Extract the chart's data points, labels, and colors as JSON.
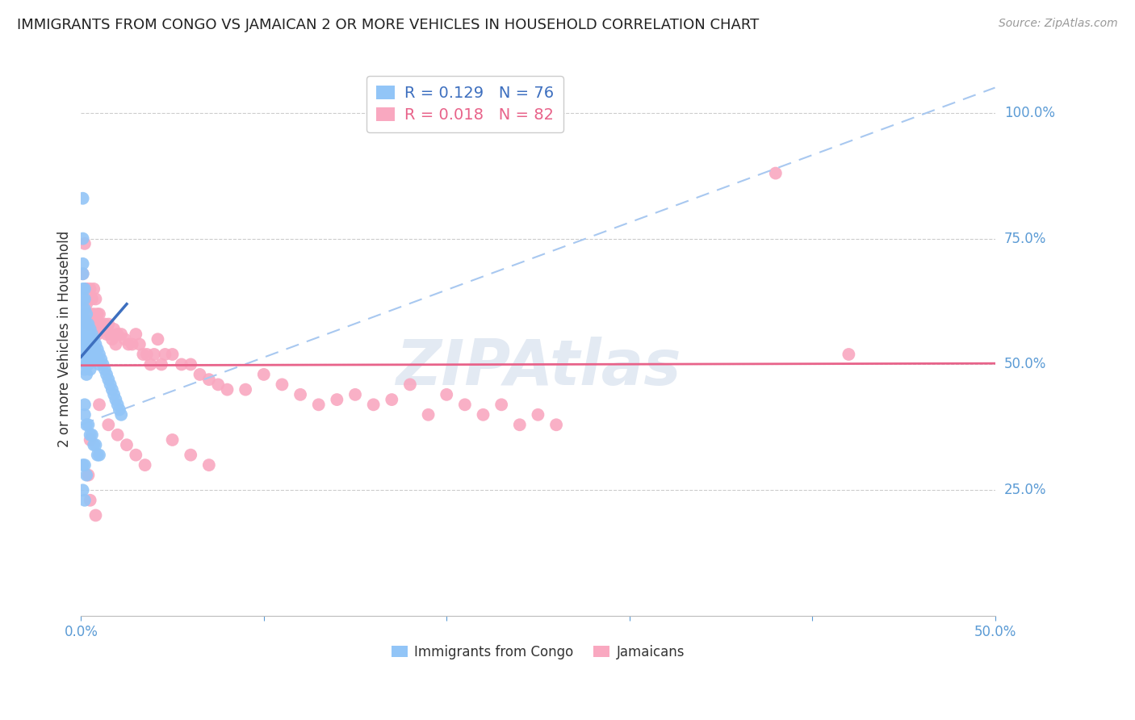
{
  "title": "IMMIGRANTS FROM CONGO VS JAMAICAN 2 OR MORE VEHICLES IN HOUSEHOLD CORRELATION CHART",
  "source": "Source: ZipAtlas.com",
  "ylabel": "2 or more Vehicles in Household",
  "ytick_labels": [
    "100.0%",
    "75.0%",
    "50.0%",
    "25.0%"
  ],
  "ytick_values": [
    1.0,
    0.75,
    0.5,
    0.25
  ],
  "xlim": [
    0.0,
    0.5
  ],
  "ylim": [
    0.0,
    1.1
  ],
  "congo_R": 0.129,
  "congo_N": 76,
  "jamaican_R": 0.018,
  "jamaican_N": 82,
  "congo_color": "#92c5f7",
  "jamaican_color": "#f9a8c0",
  "congo_line_color": "#3d6fbf",
  "jamaican_line_color": "#e8638a",
  "congo_dashed_color": "#a8c8f0",
  "legend_labels": [
    "Immigrants from Congo",
    "Jamaicans"
  ],
  "congo_x": [
    0.001,
    0.001,
    0.001,
    0.001,
    0.001,
    0.001,
    0.001,
    0.001,
    0.001,
    0.001,
    0.002,
    0.002,
    0.002,
    0.002,
    0.002,
    0.002,
    0.002,
    0.002,
    0.002,
    0.003,
    0.003,
    0.003,
    0.003,
    0.003,
    0.003,
    0.003,
    0.004,
    0.004,
    0.004,
    0.004,
    0.004,
    0.005,
    0.005,
    0.005,
    0.005,
    0.005,
    0.006,
    0.006,
    0.006,
    0.007,
    0.007,
    0.007,
    0.008,
    0.008,
    0.009,
    0.009,
    0.01,
    0.01,
    0.011,
    0.012,
    0.013,
    0.014,
    0.015,
    0.016,
    0.017,
    0.018,
    0.019,
    0.02,
    0.021,
    0.022,
    0.002,
    0.002,
    0.003,
    0.004,
    0.005,
    0.006,
    0.007,
    0.008,
    0.009,
    0.01,
    0.001,
    0.001,
    0.002,
    0.003,
    0.001,
    0.002
  ],
  "congo_y": [
    0.75,
    0.7,
    0.68,
    0.65,
    0.63,
    0.61,
    0.59,
    0.57,
    0.55,
    0.53,
    0.65,
    0.63,
    0.61,
    0.59,
    0.57,
    0.55,
    0.53,
    0.51,
    0.49,
    0.6,
    0.58,
    0.56,
    0.54,
    0.52,
    0.5,
    0.48,
    0.58,
    0.56,
    0.54,
    0.52,
    0.5,
    0.57,
    0.55,
    0.53,
    0.51,
    0.49,
    0.56,
    0.54,
    0.52,
    0.55,
    0.53,
    0.51,
    0.54,
    0.52,
    0.53,
    0.51,
    0.52,
    0.5,
    0.51,
    0.5,
    0.49,
    0.48,
    0.47,
    0.46,
    0.45,
    0.44,
    0.43,
    0.42,
    0.41,
    0.4,
    0.42,
    0.4,
    0.38,
    0.38,
    0.36,
    0.36,
    0.34,
    0.34,
    0.32,
    0.32,
    0.83,
    0.3,
    0.3,
    0.28,
    0.25,
    0.23
  ],
  "jamaican_x": [
    0.001,
    0.002,
    0.003,
    0.003,
    0.004,
    0.004,
    0.005,
    0.005,
    0.006,
    0.006,
    0.007,
    0.007,
    0.008,
    0.008,
    0.009,
    0.009,
    0.01,
    0.011,
    0.012,
    0.013,
    0.014,
    0.015,
    0.016,
    0.017,
    0.018,
    0.019,
    0.02,
    0.022,
    0.024,
    0.026,
    0.028,
    0.03,
    0.032,
    0.034,
    0.036,
    0.038,
    0.04,
    0.042,
    0.044,
    0.046,
    0.05,
    0.055,
    0.06,
    0.065,
    0.07,
    0.075,
    0.08,
    0.09,
    0.1,
    0.11,
    0.12,
    0.13,
    0.14,
    0.15,
    0.16,
    0.17,
    0.18,
    0.19,
    0.2,
    0.21,
    0.22,
    0.23,
    0.24,
    0.25,
    0.26,
    0.005,
    0.01,
    0.015,
    0.02,
    0.025,
    0.03,
    0.035,
    0.002,
    0.003,
    0.004,
    0.05,
    0.06,
    0.07,
    0.38,
    0.42,
    0.005,
    0.008
  ],
  "jamaican_y": [
    0.68,
    0.6,
    0.65,
    0.62,
    0.63,
    0.58,
    0.65,
    0.6,
    0.63,
    0.58,
    0.65,
    0.6,
    0.63,
    0.58,
    0.6,
    0.56,
    0.6,
    0.58,
    0.57,
    0.58,
    0.56,
    0.58,
    0.56,
    0.55,
    0.57,
    0.54,
    0.56,
    0.56,
    0.55,
    0.54,
    0.54,
    0.56,
    0.54,
    0.52,
    0.52,
    0.5,
    0.52,
    0.55,
    0.5,
    0.52,
    0.52,
    0.5,
    0.5,
    0.48,
    0.47,
    0.46,
    0.45,
    0.45,
    0.48,
    0.46,
    0.44,
    0.42,
    0.43,
    0.44,
    0.42,
    0.43,
    0.46,
    0.4,
    0.44,
    0.42,
    0.4,
    0.42,
    0.38,
    0.4,
    0.38,
    0.35,
    0.42,
    0.38,
    0.36,
    0.34,
    0.32,
    0.3,
    0.74,
    0.65,
    0.28,
    0.35,
    0.32,
    0.3,
    0.88,
    0.52,
    0.23,
    0.2
  ]
}
